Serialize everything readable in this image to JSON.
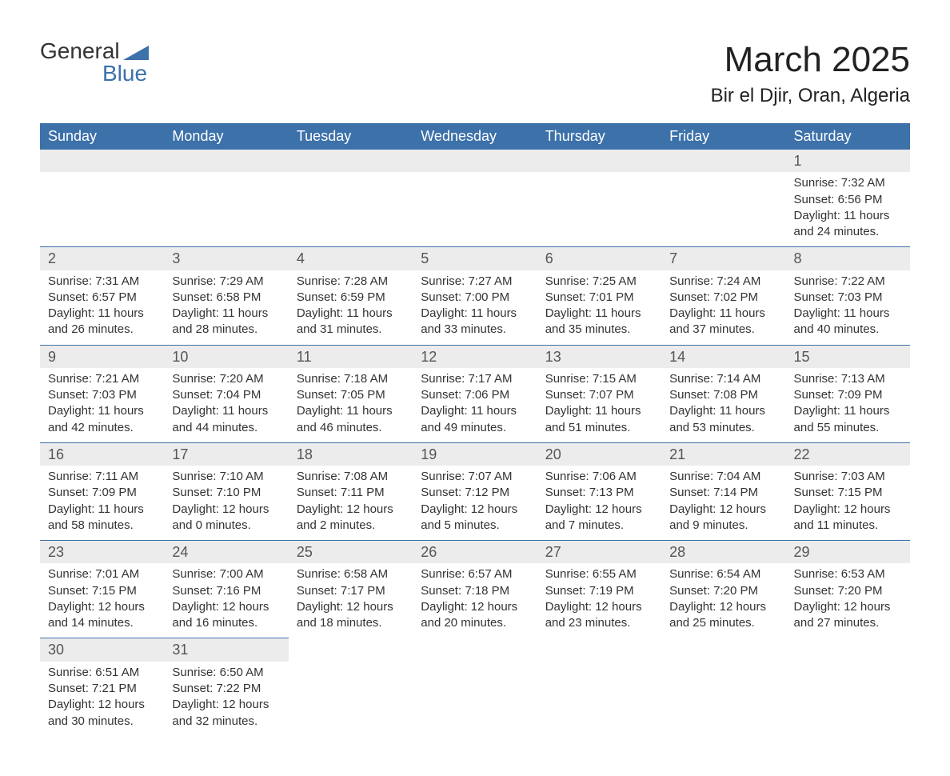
{
  "logo": {
    "word1": "General",
    "word2": "Blue",
    "accent_color": "#3c71aa"
  },
  "title": "March 2025",
  "location": "Bir el Djir, Oran, Algeria",
  "colors": {
    "header_bg": "#3c71aa",
    "header_text": "#ffffff",
    "daynum_bg": "#ececec",
    "row_border": "#3c71aa",
    "text": "#333333",
    "background": "#ffffff"
  },
  "typography": {
    "title_size_pt": 33,
    "location_size_pt": 18,
    "header_size_pt": 14,
    "cell_size_pt": 11
  },
  "days_of_week": [
    "Sunday",
    "Monday",
    "Tuesday",
    "Wednesday",
    "Thursday",
    "Friday",
    "Saturday"
  ],
  "weeks": [
    [
      null,
      null,
      null,
      null,
      null,
      null,
      {
        "d": "1",
        "sr": "7:32 AM",
        "ss": "6:56 PM",
        "dl": "11 hours and 24 minutes."
      }
    ],
    [
      {
        "d": "2",
        "sr": "7:31 AM",
        "ss": "6:57 PM",
        "dl": "11 hours and 26 minutes."
      },
      {
        "d": "3",
        "sr": "7:29 AM",
        "ss": "6:58 PM",
        "dl": "11 hours and 28 minutes."
      },
      {
        "d": "4",
        "sr": "7:28 AM",
        "ss": "6:59 PM",
        "dl": "11 hours and 31 minutes."
      },
      {
        "d": "5",
        "sr": "7:27 AM",
        "ss": "7:00 PM",
        "dl": "11 hours and 33 minutes."
      },
      {
        "d": "6",
        "sr": "7:25 AM",
        "ss": "7:01 PM",
        "dl": "11 hours and 35 minutes."
      },
      {
        "d": "7",
        "sr": "7:24 AM",
        "ss": "7:02 PM",
        "dl": "11 hours and 37 minutes."
      },
      {
        "d": "8",
        "sr": "7:22 AM",
        "ss": "7:03 PM",
        "dl": "11 hours and 40 minutes."
      }
    ],
    [
      {
        "d": "9",
        "sr": "7:21 AM",
        "ss": "7:03 PM",
        "dl": "11 hours and 42 minutes."
      },
      {
        "d": "10",
        "sr": "7:20 AM",
        "ss": "7:04 PM",
        "dl": "11 hours and 44 minutes."
      },
      {
        "d": "11",
        "sr": "7:18 AM",
        "ss": "7:05 PM",
        "dl": "11 hours and 46 minutes."
      },
      {
        "d": "12",
        "sr": "7:17 AM",
        "ss": "7:06 PM",
        "dl": "11 hours and 49 minutes."
      },
      {
        "d": "13",
        "sr": "7:15 AM",
        "ss": "7:07 PM",
        "dl": "11 hours and 51 minutes."
      },
      {
        "d": "14",
        "sr": "7:14 AM",
        "ss": "7:08 PM",
        "dl": "11 hours and 53 minutes."
      },
      {
        "d": "15",
        "sr": "7:13 AM",
        "ss": "7:09 PM",
        "dl": "11 hours and 55 minutes."
      }
    ],
    [
      {
        "d": "16",
        "sr": "7:11 AM",
        "ss": "7:09 PM",
        "dl": "11 hours and 58 minutes."
      },
      {
        "d": "17",
        "sr": "7:10 AM",
        "ss": "7:10 PM",
        "dl": "12 hours and 0 minutes."
      },
      {
        "d": "18",
        "sr": "7:08 AM",
        "ss": "7:11 PM",
        "dl": "12 hours and 2 minutes."
      },
      {
        "d": "19",
        "sr": "7:07 AM",
        "ss": "7:12 PM",
        "dl": "12 hours and 5 minutes."
      },
      {
        "d": "20",
        "sr": "7:06 AM",
        "ss": "7:13 PM",
        "dl": "12 hours and 7 minutes."
      },
      {
        "d": "21",
        "sr": "7:04 AM",
        "ss": "7:14 PM",
        "dl": "12 hours and 9 minutes."
      },
      {
        "d": "22",
        "sr": "7:03 AM",
        "ss": "7:15 PM",
        "dl": "12 hours and 11 minutes."
      }
    ],
    [
      {
        "d": "23",
        "sr": "7:01 AM",
        "ss": "7:15 PM",
        "dl": "12 hours and 14 minutes."
      },
      {
        "d": "24",
        "sr": "7:00 AM",
        "ss": "7:16 PM",
        "dl": "12 hours and 16 minutes."
      },
      {
        "d": "25",
        "sr": "6:58 AM",
        "ss": "7:17 PM",
        "dl": "12 hours and 18 minutes."
      },
      {
        "d": "26",
        "sr": "6:57 AM",
        "ss": "7:18 PM",
        "dl": "12 hours and 20 minutes."
      },
      {
        "d": "27",
        "sr": "6:55 AM",
        "ss": "7:19 PM",
        "dl": "12 hours and 23 minutes."
      },
      {
        "d": "28",
        "sr": "6:54 AM",
        "ss": "7:20 PM",
        "dl": "12 hours and 25 minutes."
      },
      {
        "d": "29",
        "sr": "6:53 AM",
        "ss": "7:20 PM",
        "dl": "12 hours and 27 minutes."
      }
    ],
    [
      {
        "d": "30",
        "sr": "6:51 AM",
        "ss": "7:21 PM",
        "dl": "12 hours and 30 minutes."
      },
      {
        "d": "31",
        "sr": "6:50 AM",
        "ss": "7:22 PM",
        "dl": "12 hours and 32 minutes."
      },
      null,
      null,
      null,
      null,
      null
    ]
  ],
  "labels": {
    "sunrise": "Sunrise:",
    "sunset": "Sunset:",
    "daylight": "Daylight:"
  }
}
